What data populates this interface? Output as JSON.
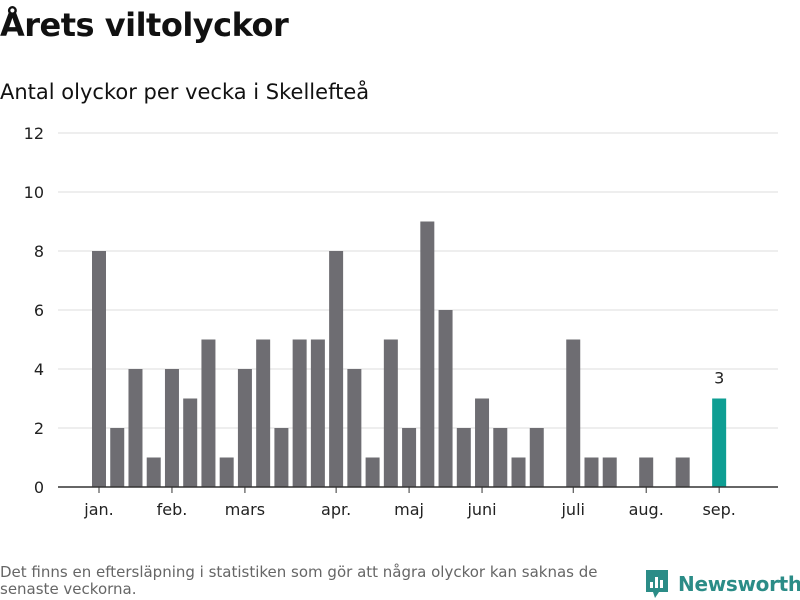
{
  "header": {
    "title": "Årets viltolyckor",
    "subtitle": "Antal olyckor per vecka i Skellefteå"
  },
  "footer": {
    "note": "Det finns en eftersläpning i statistiken som gör att några olyckor kan saknas de senaste veckorna.",
    "brand": "Newsworthy",
    "logo_icon": "newsworthy-logo-icon"
  },
  "colors": {
    "bar": "#6e6d72",
    "highlight": "#0e9e93",
    "grid": "#dddddd",
    "axis": "#333333",
    "brand": "#2b8c87"
  },
  "chart_data": {
    "type": "bar",
    "title": "Antal olyckor per vecka i Skellefteå",
    "xlabel": "",
    "ylabel": "",
    "ylim": [
      0,
      12
    ],
    "yticks": [
      0,
      2,
      4,
      6,
      8,
      10,
      12
    ],
    "grid": true,
    "values": [
      8,
      2,
      4,
      1,
      4,
      3,
      5,
      1,
      4,
      5,
      2,
      5,
      5,
      8,
      4,
      1,
      5,
      2,
      9,
      6,
      2,
      3,
      2,
      1,
      2,
      0,
      5,
      1,
      1,
      0,
      1,
      0,
      1,
      0,
      3
    ],
    "highlight_index": 34,
    "highlight_label": "3",
    "month_ticks": [
      {
        "label": "jan.",
        "index": 0
      },
      {
        "label": "feb.",
        "index": 4
      },
      {
        "label": "mars",
        "index": 8
      },
      {
        "label": "apr.",
        "index": 13
      },
      {
        "label": "maj",
        "index": 17
      },
      {
        "label": "juni",
        "index": 21
      },
      {
        "label": "juli",
        "index": 26
      },
      {
        "label": "aug.",
        "index": 30
      },
      {
        "label": "sep.",
        "index": 34
      }
    ]
  }
}
